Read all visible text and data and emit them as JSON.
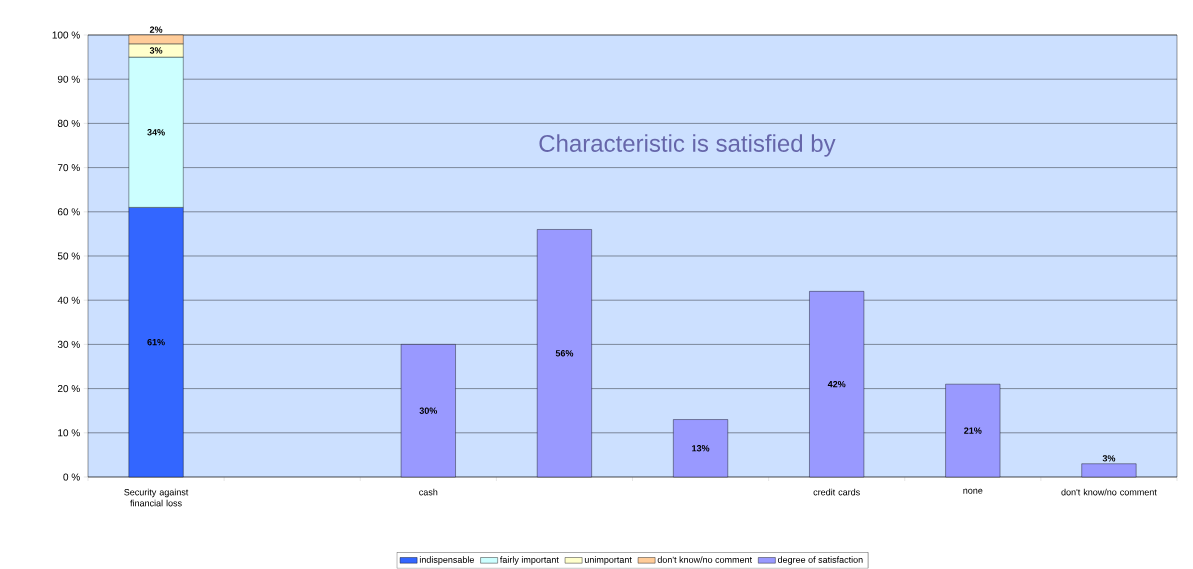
{
  "chart_data": {
    "type": "bar",
    "stacked": true,
    "categories": [
      "Security against financial loss",
      null,
      "cash",
      null,
      null,
      "credit cards",
      "none",
      "don't know/no comment"
    ],
    "series": [
      {
        "name": "indispensable",
        "color": "#3366ff",
        "values": [
          61,
          null,
          null,
          null,
          null,
          null,
          null,
          null
        ],
        "value_labels": [
          "61%",
          null,
          null,
          null,
          null,
          null,
          null,
          null
        ]
      },
      {
        "name": "fairly important",
        "color": "#ccffff",
        "values": [
          34,
          null,
          null,
          null,
          null,
          null,
          null,
          null
        ],
        "value_labels": [
          "34%",
          null,
          null,
          null,
          null,
          null,
          null,
          null
        ]
      },
      {
        "name": "unimportant",
        "color": "#ffffcc",
        "values": [
          3,
          null,
          null,
          null,
          null,
          null,
          null,
          null
        ],
        "value_labels": [
          "3%",
          null,
          null,
          null,
          null,
          null,
          null,
          null
        ]
      },
      {
        "name": "don't know/no comment",
        "color": "#ffcc99",
        "values": [
          2,
          null,
          null,
          null,
          null,
          null,
          null,
          null
        ],
        "value_labels": [
          "2%",
          null,
          null,
          null,
          null,
          null,
          null,
          null
        ]
      },
      {
        "name": "degree of satisfaction",
        "color": "#9999ff",
        "values": [
          null,
          null,
          30,
          56,
          13,
          42,
          21,
          3
        ],
        "value_labels": [
          null,
          null,
          "30%",
          "56%",
          "13%",
          "42%",
          "21%",
          "3%"
        ]
      }
    ],
    "ylim": [
      0,
      100
    ],
    "yticks": [
      {
        "value": 0,
        "label": "0 %"
      },
      {
        "value": 10,
        "label": "10 %"
      },
      {
        "value": 20,
        "label": "20 %"
      },
      {
        "value": 30,
        "label": "30 %"
      },
      {
        "value": 40,
        "label": "40 %"
      },
      {
        "value": 50,
        "label": "50 %"
      },
      {
        "value": 60,
        "label": "60 %"
      },
      {
        "value": 70,
        "label": "70 %"
      },
      {
        "value": 80,
        "label": "80 %"
      },
      {
        "value": 90,
        "label": "90 %"
      },
      {
        "value": 100,
        "label": "100 %"
      }
    ],
    "grid": "y",
    "legend": "bottom",
    "annotations": [
      "Characteristic is satisfied by"
    ]
  }
}
